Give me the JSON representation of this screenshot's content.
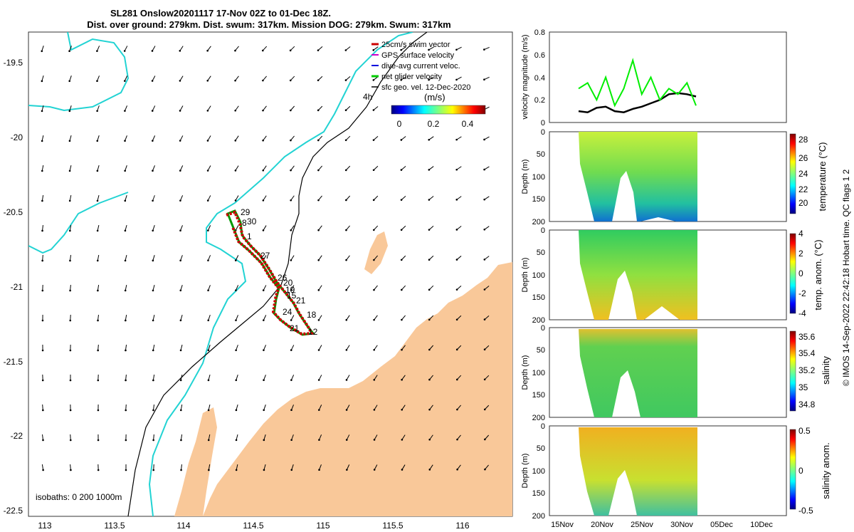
{
  "header": {
    "title_line1": "SL281 Onslow20201117 17-Nov 02Z to 01-Dec 18Z.",
    "title_line2": "Dist. over ground: 279km. Dist. swum: 317km. Mission DOG: 279km. Swum: 317km"
  },
  "map": {
    "legend": [
      {
        "label": "25cm/s swim vector",
        "color": "#cc0000"
      },
      {
        "label": "GPS surface velocity",
        "color": "#cc00cc"
      },
      {
        "label": "dive-avg current veloc.",
        "color": "#0000dd"
      },
      {
        "label": "net glider velocity",
        "color": "#00cc00"
      },
      {
        "label": "sfc geo. vel. 12-Dec-2020",
        "color": "#000000"
      }
    ],
    "colorbar_label": "(m/s)",
    "colorbar_ticks": [
      "0",
      "0.2",
      "0.4"
    ],
    "corner_label": "4h",
    "isobaths_label": "isobaths: 0   200  1000m",
    "x_ticks": [
      "113",
      "113.5",
      "114",
      "114.5",
      "115",
      "115.5",
      "116"
    ],
    "y_ticks": [
      "-19.5",
      "-20",
      "-20.5",
      "-21",
      "-21.5",
      "-22",
      "-22.5"
    ],
    "day_labels": [
      "29",
      "30",
      "8",
      "1",
      "27",
      "26",
      "20",
      "19",
      "15",
      "21",
      "24",
      "18",
      "21",
      "12"
    ],
    "colors": {
      "land": "#f9c899",
      "coast_cyan": "#22d3d3",
      "isobath": "#000000",
      "track": "#cc0000",
      "track_line": "#00aa00"
    }
  },
  "chart_data": [
    {
      "type": "line",
      "ylabel": "velocity magnitude (m/s)",
      "ylim": [
        0,
        0.8
      ],
      "y_ticks": [
        "0",
        "0.2",
        "0.4",
        "0.6",
        "0.8"
      ],
      "series": [
        {
          "values_date": [
            "18Nov",
            "19Nov",
            "20Nov",
            "21Nov",
            "22Nov",
            "23Nov",
            "24Nov",
            "25Nov",
            "26Nov",
            "27Nov",
            "28Nov",
            "29Nov",
            "30Nov",
            "01Dec"
          ],
          "values": [
            0.1,
            0.09,
            0.13,
            0.14,
            0.1,
            0.09,
            0.12,
            0.14,
            0.17,
            0.2,
            0.25,
            0.26,
            0.25,
            0.23
          ],
          "color": "#000000"
        },
        {
          "values_date": [
            "18Nov",
            "19Nov",
            "20Nov",
            "21Nov",
            "22Nov",
            "23Nov",
            "24Nov",
            "25Nov",
            "26Nov",
            "27Nov",
            "28Nov",
            "29Nov",
            "30Nov",
            "01Dec"
          ],
          "values": [
            0.3,
            0.35,
            0.2,
            0.4,
            0.15,
            0.3,
            0.55,
            0.25,
            0.4,
            0.2,
            0.3,
            0.25,
            0.35,
            0.15
          ],
          "color": "#00ee00"
        }
      ]
    },
    {
      "type": "heatmap",
      "ylabel": "Depth (m)",
      "colorbar_label": "temperature (°C)",
      "y_ticks": [
        "0",
        "50",
        "100",
        "150",
        "200"
      ],
      "colorbar_ticks": [
        "28",
        "26",
        "24",
        "22",
        "20"
      ]
    },
    {
      "type": "heatmap",
      "ylabel": "Depth (m)",
      "colorbar_label": "temp. anom. (°C)",
      "y_ticks": [
        "0",
        "50",
        "100",
        "150",
        "200"
      ],
      "colorbar_ticks": [
        "4",
        "2",
        "0",
        "-2",
        "-4"
      ]
    },
    {
      "type": "heatmap",
      "ylabel": "Depth (m)",
      "colorbar_label": "salinity",
      "y_ticks": [
        "0",
        "50",
        "100",
        "150",
        "200"
      ],
      "colorbar_ticks": [
        "35.6",
        "35.4",
        "35.2",
        "35",
        "34.8"
      ]
    },
    {
      "type": "heatmap",
      "ylabel": "Depth (m)",
      "colorbar_label": "salinity anom.",
      "y_ticks": [
        "0",
        "50",
        "100",
        "150",
        "200"
      ],
      "colorbar_ticks": [
        "0.5",
        "0",
        "-0.5"
      ],
      "x_ticks": [
        "15Nov",
        "20Nov",
        "25Nov",
        "30Nov",
        "05Dec",
        "10Dec"
      ]
    }
  ],
  "side_note": "© IMOS 14-Sep-2022 22:42:18 Hobart time. QC flags 1  2"
}
